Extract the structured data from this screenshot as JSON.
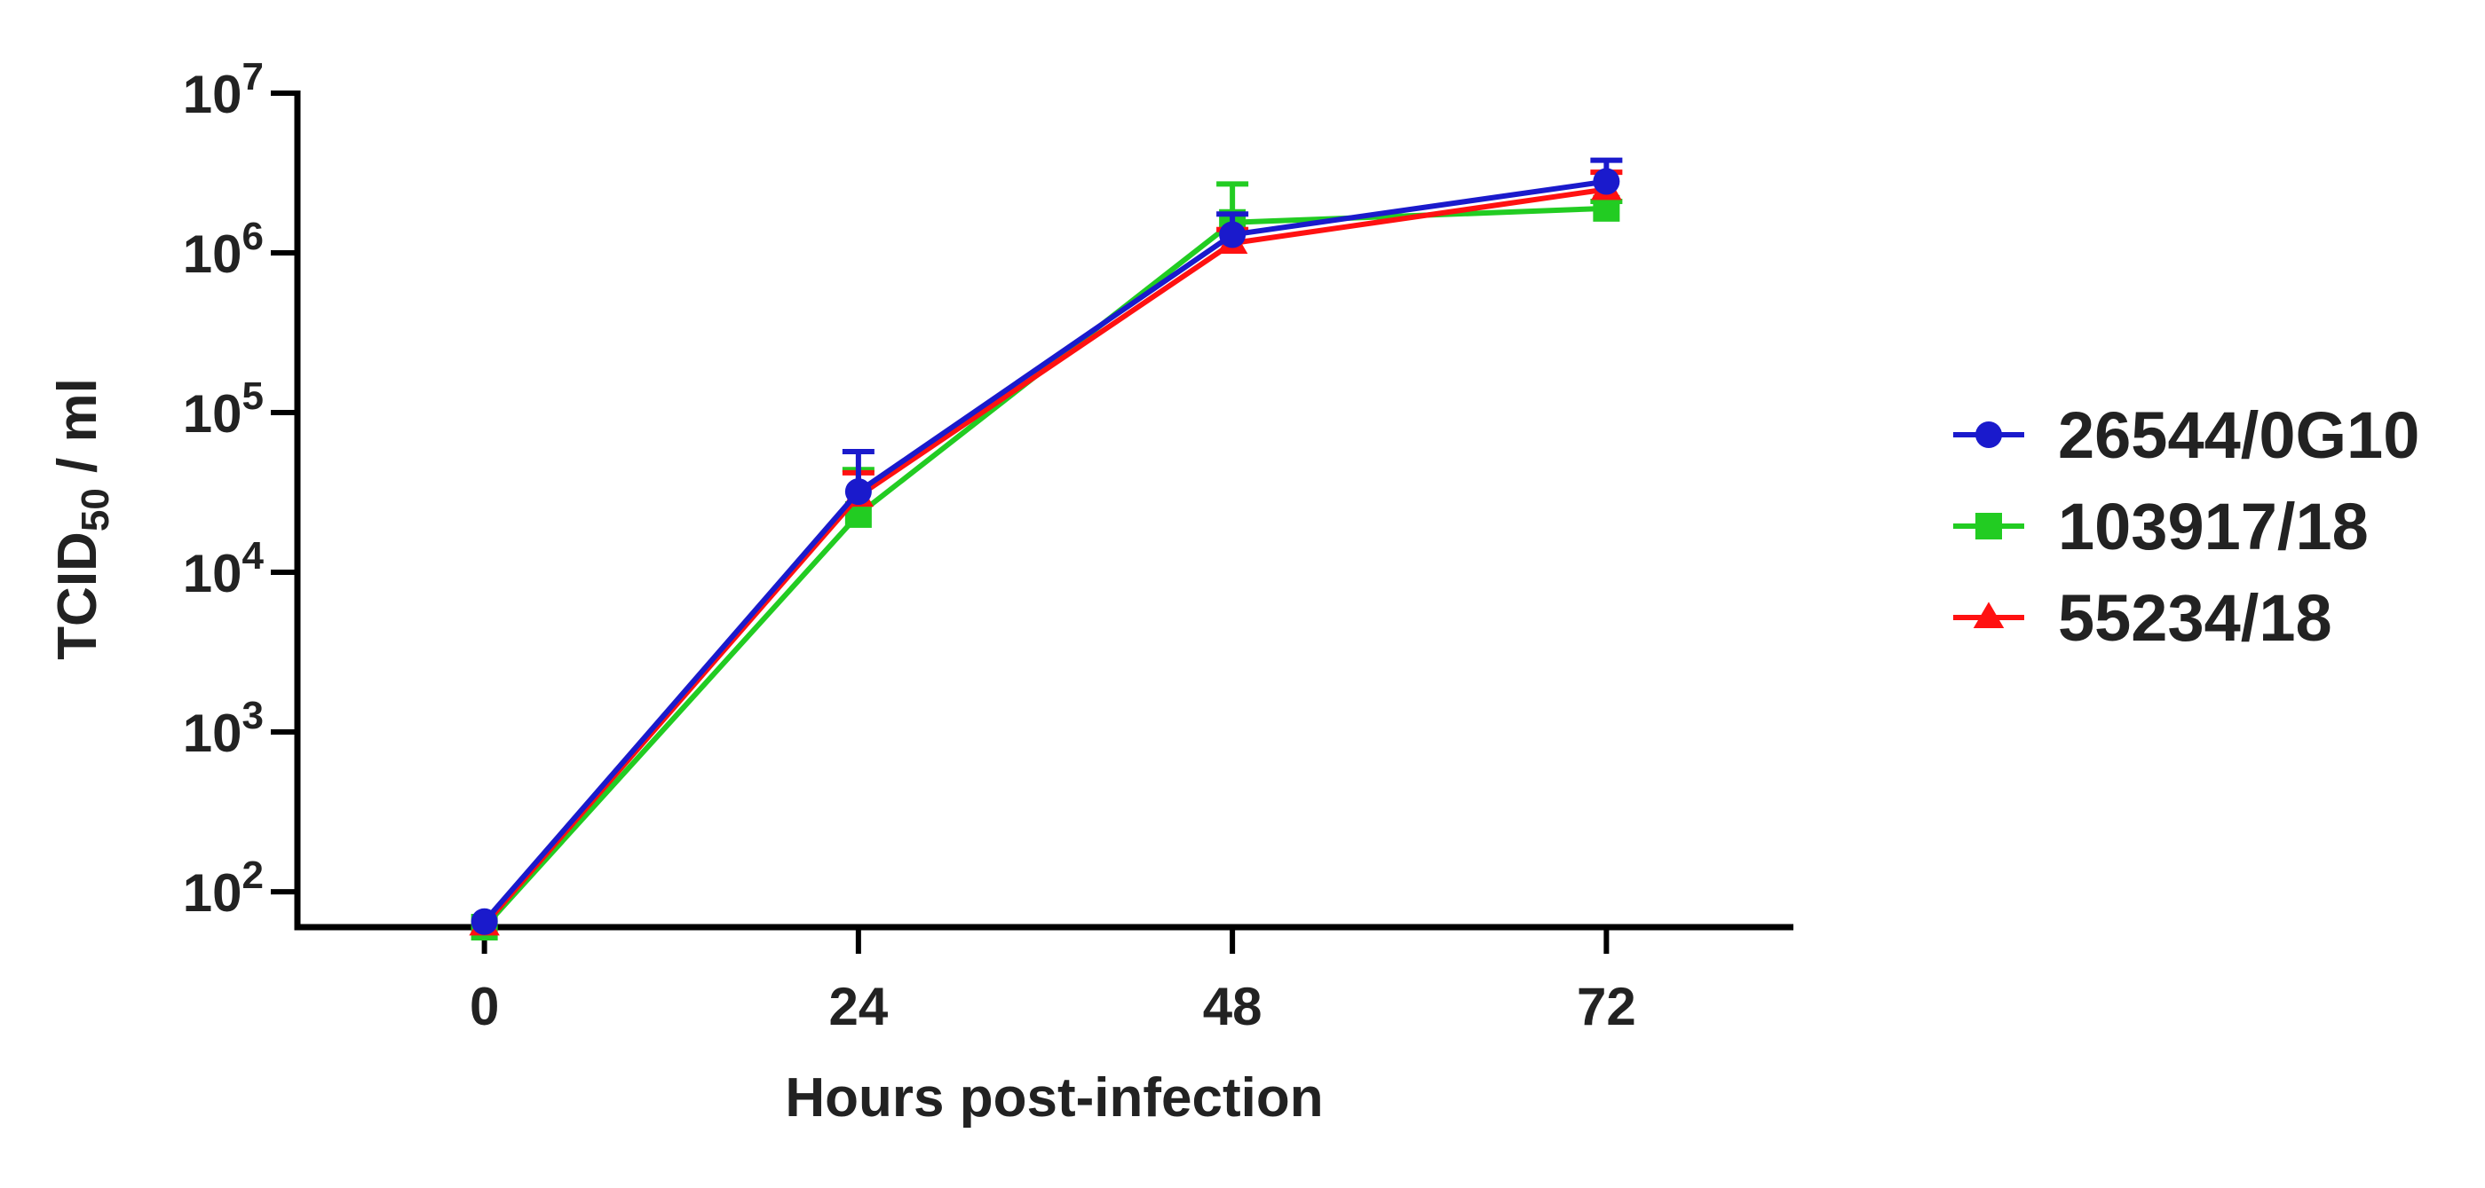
{
  "chart_data": {
    "type": "line",
    "title": "",
    "xlabel": "Hours post-infection",
    "ylabel": "TCID",
    "ylabel_subscript": "50",
    "ylabel_suffix": " / ml",
    "y_scale": "log",
    "ylim": [
      60,
      10000000
    ],
    "xlim": [
      -12,
      84
    ],
    "x": [
      0,
      24,
      48,
      72
    ],
    "x_tick_labels": [
      "0",
      "24",
      "48",
      "72"
    ],
    "y_ticks": [
      {
        "value": 100,
        "base": "10",
        "exp": "2"
      },
      {
        "value": 1000,
        "base": "10",
        "exp": "3"
      },
      {
        "value": 10000,
        "base": "10",
        "exp": "4"
      },
      {
        "value": 100000,
        "base": "10",
        "exp": "5"
      },
      {
        "value": 1000000,
        "base": "10",
        "exp": "6"
      },
      {
        "value": 10000000,
        "base": "10",
        "exp": "7"
      }
    ],
    "grid": false,
    "legend_position": "right",
    "series": [
      {
        "name": "26544/0G10",
        "color": "#1a1acc",
        "marker": "circle",
        "values": [
          65,
          32000,
          1300000,
          2800000
        ],
        "error_upper": [
          65,
          57000,
          1750000,
          3800000
        ]
      },
      {
        "name": "103917/18",
        "color": "#22cc22",
        "marker": "square",
        "values": [
          60,
          23000,
          1550000,
          1900000
        ],
        "error_upper": [
          60,
          44000,
          2700000,
          2100000
        ]
      },
      {
        "name": "55234/18",
        "color": "#ff1111",
        "marker": "triangle",
        "values": [
          62,
          30000,
          1150000,
          2500000
        ],
        "error_upper": [
          62,
          42000,
          1400000,
          3200000
        ]
      }
    ]
  }
}
